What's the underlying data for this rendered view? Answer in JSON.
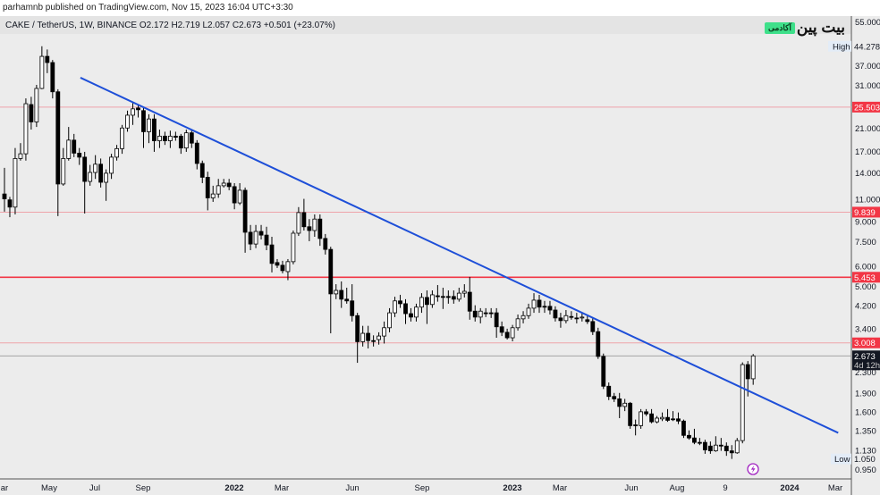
{
  "header": {
    "published": "parhamnb published on TradingView.com, Nov 15, 2023 16:04 UTC+3:30",
    "legend": "CAKE / TetherUS, 1W, BINANCE  O2.172  H2.719  L2.057  C2.673  +0.501 (+23.07%)"
  },
  "logo": {
    "name": "بیت پین",
    "badge": "آکادمی"
  },
  "colors": {
    "up": "#ffffff",
    "down": "#000000",
    "trendline": "#1e4fd8",
    "level": "#f23645",
    "level_thin": "#eea3aa",
    "current": "#131722"
  },
  "chart_data": {
    "type": "candlestick",
    "title": "CAKE / TetherUS, 1W, BINANCE",
    "scale": "log",
    "ylim": [
      0.95,
      55.0
    ],
    "x_tick_labels": [
      "ar",
      "May",
      "Jul",
      "Sep",
      "2022",
      "Mar",
      "Jun",
      "Sep",
      "2023",
      "Mar",
      "Jun",
      "Aug",
      "9",
      "2024",
      "Mar"
    ],
    "y_ticks": [
      "55.000",
      "37.000",
      "31.000",
      "21.000",
      "17.000",
      "14.000",
      "11.000",
      "9.000",
      "7.500",
      "6.000",
      "5.000",
      "4.200",
      "3.400",
      "2.300",
      "1.900",
      "1.600",
      "1.350",
      "1.130",
      "0.950"
    ],
    "high": {
      "label": "High",
      "value": "44.278"
    },
    "low": {
      "label": "Low",
      "value": "1.050"
    },
    "current": {
      "value": "2.673",
      "countdown": "4d 12h"
    },
    "levels": [
      {
        "value": "25.503",
        "style": "thin"
      },
      {
        "value": "9.839",
        "style": "thin"
      },
      {
        "value": "5.453",
        "style": "thick"
      },
      {
        "value": "3.008",
        "style": "thin"
      }
    ],
    "trendline": {
      "start": {
        "week": 14.2,
        "price": 33.3
      },
      "end": {
        "week": 155.9,
        "price": 1.33
      }
    },
    "candles": [
      [
        11.6,
        14.7,
        9.88,
        11.1
      ],
      [
        11.0,
        11.3,
        9.4,
        10.3
      ],
      [
        10.3,
        17.6,
        9.64,
        16.0
      ],
      [
        16.0,
        18.4,
        15.7,
        16.7
      ],
      [
        16.7,
        27.6,
        15.7,
        26.3
      ],
      [
        26.1,
        28.0,
        20.8,
        22.3
      ],
      [
        22.3,
        31.2,
        21.3,
        30.2
      ],
      [
        30.2,
        44.278,
        30.0,
        40.4
      ],
      [
        40.4,
        43.0,
        34.7,
        38.2
      ],
      [
        38.2,
        39.1,
        27.6,
        29.3
      ],
      [
        29.3,
        30.0,
        9.49,
        12.7
      ],
      [
        12.7,
        17.6,
        12.5,
        16.0
      ],
      [
        16.0,
        21.3,
        15.7,
        18.9
      ],
      [
        18.9,
        20.0,
        16.2,
        16.8
      ],
      [
        16.8,
        17.6,
        15.1,
        16.2
      ],
      [
        16.2,
        17.0,
        9.72,
        13.0
      ],
      [
        13.0,
        15.1,
        12.5,
        14.1
      ],
      [
        14.1,
        16.5,
        13.3,
        15.2
      ],
      [
        15.2,
        16.0,
        12.3,
        12.9
      ],
      [
        12.9,
        14.5,
        10.9,
        14.0
      ],
      [
        14.0,
        16.7,
        13.3,
        16.2
      ],
      [
        16.2,
        18.1,
        15.7,
        17.5
      ],
      [
        17.5,
        21.7,
        16.7,
        21.1
      ],
      [
        21.1,
        24.7,
        20.4,
        23.7
      ],
      [
        23.7,
        26.5,
        21.7,
        25.1
      ],
      [
        25.3,
        25.9,
        23.2,
        24.9
      ],
      [
        24.7,
        25.5,
        17.6,
        20.4
      ],
      [
        20.4,
        23.9,
        18.4,
        22.9
      ],
      [
        22.9,
        23.9,
        17.0,
        18.8
      ],
      [
        18.8,
        20.8,
        17.6,
        19.6
      ],
      [
        19.6,
        20.4,
        18.1,
        18.8
      ],
      [
        18.8,
        20.6,
        17.6,
        19.6
      ],
      [
        19.6,
        20.4,
        18.8,
        19.4
      ],
      [
        19.6,
        20.0,
        16.7,
        17.6
      ],
      [
        17.6,
        20.8,
        17.0,
        20.2
      ],
      [
        20.2,
        20.8,
        17.6,
        18.4
      ],
      [
        18.4,
        18.9,
        14.5,
        15.3
      ],
      [
        15.3,
        15.7,
        12.8,
        13.5
      ],
      [
        13.5,
        14.2,
        10.0,
        11.2
      ],
      [
        11.2,
        12.5,
        10.8,
        11.6
      ],
      [
        11.6,
        13.3,
        11.2,
        12.5
      ],
      [
        12.5,
        13.3,
        12.3,
        12.8
      ],
      [
        12.8,
        13.3,
        12.0,
        12.4
      ],
      [
        12.4,
        12.8,
        10.1,
        10.7
      ],
      [
        10.7,
        12.8,
        10.5,
        12.0
      ],
      [
        12.0,
        12.3,
        6.81,
        8.2
      ],
      [
        8.2,
        8.76,
        6.97,
        7.37
      ],
      [
        7.37,
        8.76,
        7.1,
        8.26
      ],
      [
        8.26,
        8.76,
        7.68,
        7.99
      ],
      [
        7.99,
        8.62,
        6.97,
        7.31
      ],
      [
        7.31,
        7.87,
        5.7,
        6.18
      ],
      [
        6.23,
        6.43,
        5.93,
        6.08
      ],
      [
        6.08,
        6.33,
        5.65,
        5.79
      ],
      [
        5.74,
        6.43,
        5.31,
        6.28
      ],
      [
        6.28,
        8.33,
        6.13,
        8.13
      ],
      [
        8.13,
        10.3,
        7.93,
        9.8
      ],
      [
        9.8,
        11.1,
        8.33,
        8.62
      ],
      [
        8.62,
        9.24,
        7.56,
        8.33
      ],
      [
        8.33,
        9.64,
        7.87,
        9.24
      ],
      [
        9.24,
        9.64,
        7.25,
        7.75
      ],
      [
        7.75,
        8.07,
        6.7,
        7.02
      ],
      [
        7.02,
        7.19,
        3.28,
        4.69
      ],
      [
        4.69,
        5.12,
        4.47,
        4.84
      ],
      [
        4.84,
        5.25,
        4.13,
        4.47
      ],
      [
        4.47,
        4.96,
        4.29,
        4.4
      ],
      [
        4.4,
        5.12,
        3.65,
        3.85
      ],
      [
        3.85,
        3.95,
        2.51,
        3.04
      ],
      [
        3.04,
        3.51,
        2.91,
        3.28
      ],
      [
        3.28,
        3.51,
        2.86,
        3.07
      ],
      [
        3.07,
        3.22,
        2.91,
        3.06
      ],
      [
        3.1,
        3.31,
        2.96,
        3.2
      ],
      [
        3.2,
        3.65,
        2.99,
        3.45
      ],
      [
        3.45,
        4.12,
        3.31,
        3.95
      ],
      [
        3.95,
        4.57,
        3.8,
        4.4
      ],
      [
        4.4,
        4.65,
        4.13,
        4.29
      ],
      [
        4.29,
        4.47,
        3.57,
        3.92
      ],
      [
        3.92,
        4.12,
        3.65,
        3.8
      ],
      [
        3.8,
        4.29,
        3.65,
        4.16
      ],
      [
        4.16,
        4.72,
        3.95,
        4.54
      ],
      [
        4.54,
        4.84,
        3.57,
        4.26
      ],
      [
        4.26,
        4.84,
        4.13,
        4.65
      ],
      [
        4.61,
        5.08,
        4.37,
        4.58
      ],
      [
        4.58,
        4.96,
        4.09,
        4.57
      ],
      [
        4.58,
        4.84,
        4.29,
        4.54
      ],
      [
        4.58,
        4.84,
        4.29,
        4.47
      ],
      [
        4.47,
        4.96,
        4.37,
        4.72
      ],
      [
        4.72,
        5.12,
        4.54,
        4.8
      ],
      [
        4.76,
        5.47,
        3.71,
        4.01
      ],
      [
        4.01,
        4.23,
        3.65,
        3.8
      ],
      [
        3.8,
        4.12,
        3.59,
        4.01
      ],
      [
        3.95,
        4.12,
        3.8,
        3.94
      ],
      [
        3.95,
        4.12,
        3.77,
        3.94
      ],
      [
        3.95,
        4.12,
        3.15,
        3.48
      ],
      [
        3.48,
        3.65,
        3.2,
        3.31
      ],
      [
        3.31,
        3.42,
        3.1,
        3.15
      ],
      [
        3.15,
        3.54,
        3.05,
        3.45
      ],
      [
        3.45,
        3.89,
        3.36,
        3.74
      ],
      [
        3.74,
        4.01,
        3.59,
        3.85
      ],
      [
        3.85,
        4.29,
        3.74,
        4.12
      ],
      [
        4.12,
        4.72,
        3.95,
        4.43
      ],
      [
        4.43,
        4.65,
        3.95,
        4.16
      ],
      [
        4.19,
        4.4,
        3.95,
        4.18
      ],
      [
        4.19,
        4.4,
        3.89,
        4.05
      ],
      [
        4.05,
        4.19,
        3.65,
        3.77
      ],
      [
        3.77,
        3.95,
        3.45,
        3.68
      ],
      [
        3.68,
        4.05,
        3.59,
        3.85
      ],
      [
        3.82,
        4.01,
        3.71,
        3.81
      ],
      [
        3.77,
        3.95,
        3.59,
        3.76
      ],
      [
        3.77,
        3.95,
        3.65,
        3.8
      ],
      [
        3.71,
        3.89,
        3.57,
        3.65
      ],
      [
        3.65,
        3.77,
        3.23,
        3.33
      ],
      [
        3.33,
        3.45,
        2.6,
        2.66
      ],
      [
        2.66,
        2.73,
        1.98,
        2.03
      ],
      [
        2.03,
        2.1,
        1.79,
        1.85
      ],
      [
        1.85,
        1.91,
        1.76,
        1.81
      ],
      [
        1.81,
        1.91,
        1.52,
        1.69
      ],
      [
        1.69,
        1.81,
        1.62,
        1.74
      ],
      [
        1.74,
        1.76,
        1.38,
        1.42
      ],
      [
        1.43,
        1.5,
        1.3,
        1.42
      ],
      [
        1.42,
        1.65,
        1.38,
        1.61
      ],
      [
        1.61,
        1.65,
        1.55,
        1.58
      ],
      [
        1.58,
        1.65,
        1.45,
        1.47
      ],
      [
        1.47,
        1.55,
        1.45,
        1.52
      ],
      [
        1.51,
        1.6,
        1.48,
        1.53
      ],
      [
        1.53,
        1.65,
        1.47,
        1.49
      ],
      [
        1.51,
        1.62,
        1.48,
        1.5
      ],
      [
        1.51,
        1.6,
        1.44,
        1.48
      ],
      [
        1.48,
        1.5,
        1.27,
        1.3
      ],
      [
        1.3,
        1.36,
        1.25,
        1.27
      ],
      [
        1.27,
        1.38,
        1.2,
        1.22
      ],
      [
        1.22,
        1.27,
        1.19,
        1.21
      ],
      [
        1.22,
        1.25,
        1.1,
        1.14
      ],
      [
        1.18,
        1.23,
        1.1,
        1.13
      ],
      [
        1.13,
        1.29,
        1.12,
        1.19
      ],
      [
        1.19,
        1.27,
        1.13,
        1.18
      ],
      [
        1.18,
        1.22,
        1.08,
        1.13
      ],
      [
        1.13,
        1.19,
        1.05,
        1.11
      ],
      [
        1.11,
        1.27,
        1.1,
        1.24
      ],
      [
        1.24,
        2.52,
        1.21,
        2.47
      ],
      [
        2.47,
        2.55,
        1.85,
        2.172
      ],
      [
        2.172,
        2.719,
        2.057,
        2.673
      ]
    ]
  }
}
